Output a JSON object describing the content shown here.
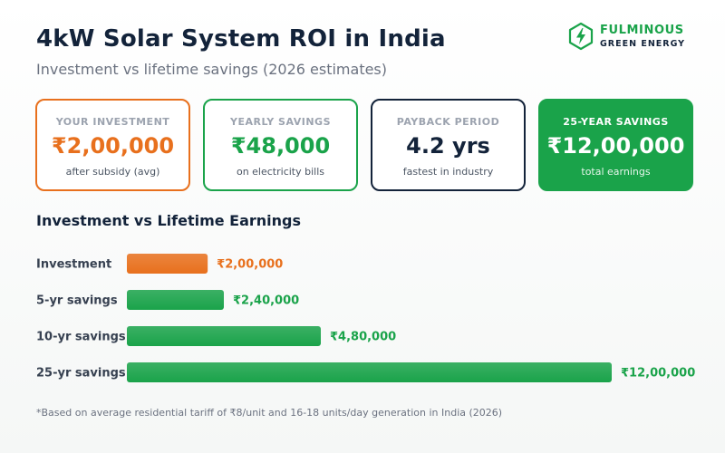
{
  "header": {
    "title": "4kW Solar System ROI in India",
    "subtitle": "Investment vs lifetime savings (2026 estimates)"
  },
  "brand": {
    "name": "FULMINOUS",
    "tagline": "GREEN ENERGY",
    "icon": "lightning-hexagon-icon"
  },
  "cards": [
    {
      "label": "YOUR INVESTMENT",
      "value": "₹2,00,000",
      "note": "after subsidy (avg)"
    },
    {
      "label": "YEARLY SAVINGS",
      "value": "₹48,000",
      "note": "on electricity bills"
    },
    {
      "label": "PAYBACK PERIOD",
      "value": "4.2 yrs",
      "note": "fastest in industry"
    },
    {
      "label": "25-YEAR SAVINGS",
      "value": "₹12,00,000",
      "note": "total earnings"
    }
  ],
  "section_title": "Investment vs Lifetime Earnings",
  "colors": {
    "investment": "#e8701d",
    "savings": "#1aa34a",
    "navy": "#13233a"
  },
  "chart_data": {
    "type": "bar",
    "orientation": "horizontal",
    "title": "Investment vs Lifetime Earnings",
    "categories": [
      "Investment",
      "5-yr savings",
      "10-yr savings",
      "25-yr savings"
    ],
    "values": [
      200000,
      240000,
      480000,
      1200000
    ],
    "value_labels": [
      "₹2,00,000",
      "₹2,40,000",
      "₹4,80,000",
      "₹12,00,000"
    ],
    "bar_colors": [
      "#e8701d",
      "#1aa34a",
      "#1aa34a",
      "#1aa34a"
    ],
    "xlim": [
      0,
      1200000
    ],
    "grid": false,
    "legend": "none"
  },
  "footnote": "*Based on average residential tariff of ₹8/unit and 16-18 units/day generation in India (2026)"
}
